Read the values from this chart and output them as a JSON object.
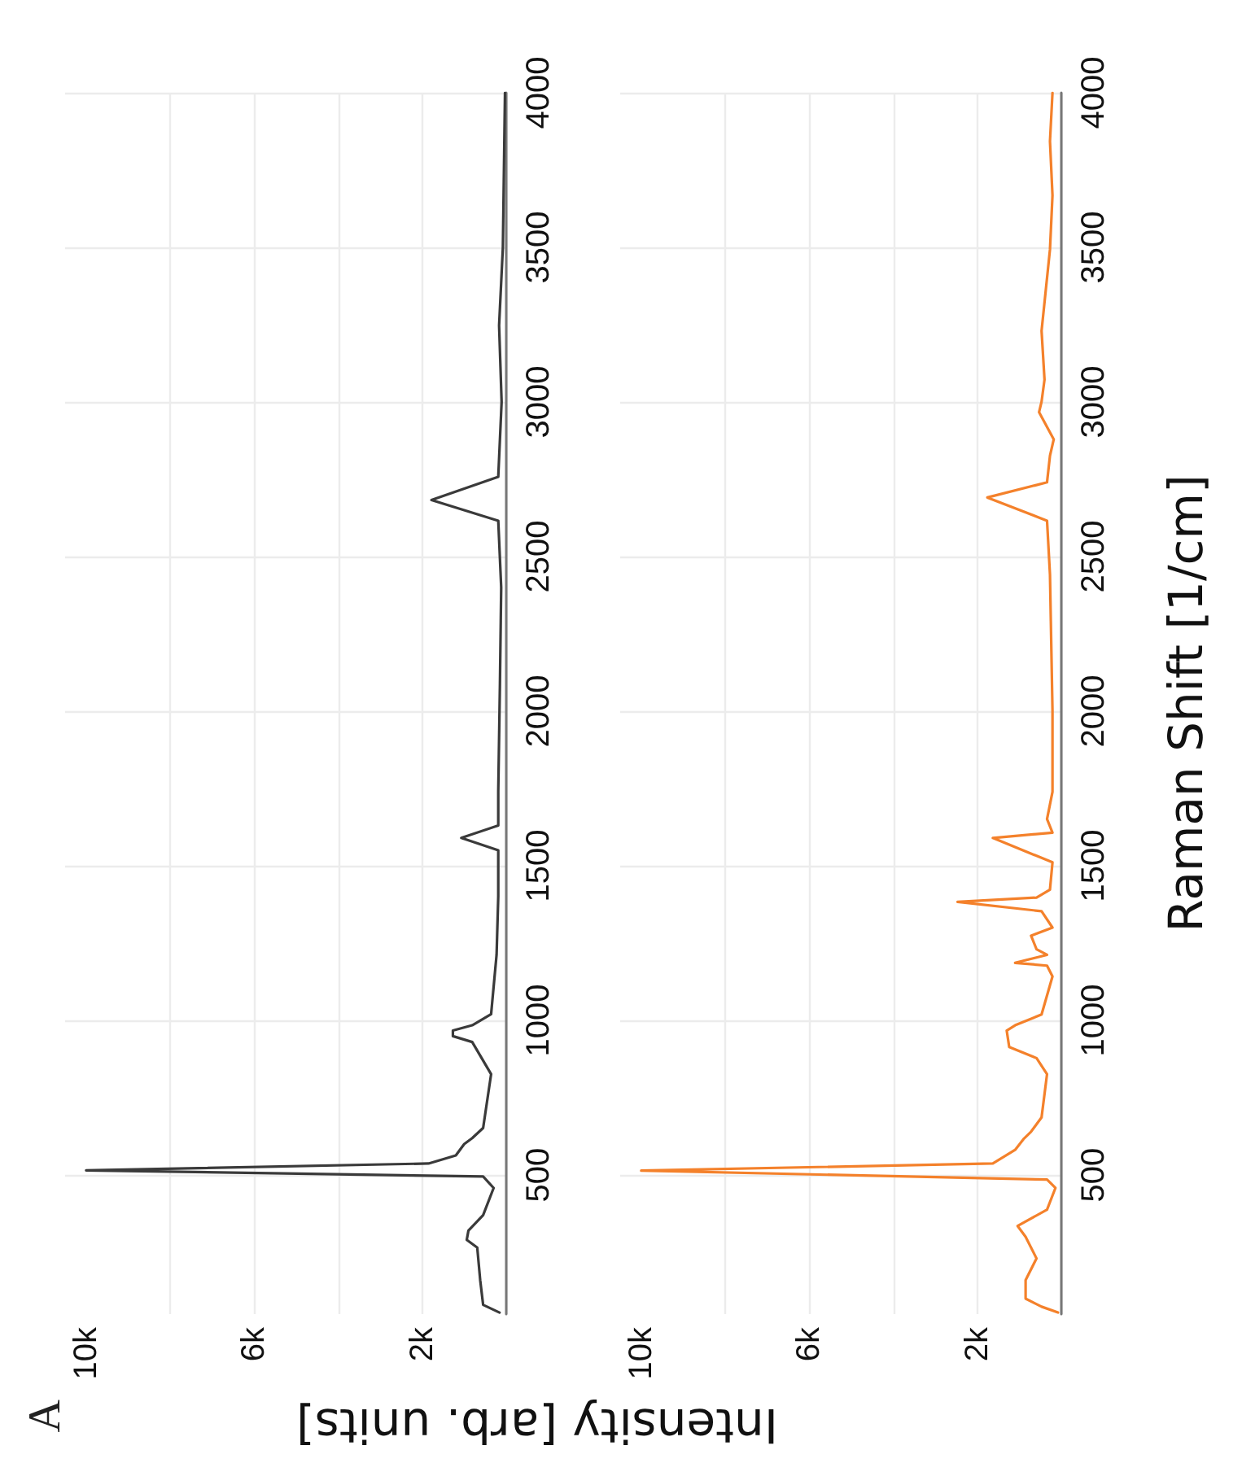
{
  "chart_data": [
    {
      "type": "line",
      "xlabel": "Intensity [arb. units]",
      "annotations": [
        "A"
      ],
      "color": "#3a3a3a",
      "grid": true,
      "marker": "none",
      "line_style": "solid",
      "values": [
        55,
        80,
        160,
        265,
        290,
        320,
        370,
        458,
        495,
        515,
        537,
        563,
        600,
        619,
        652,
        826,
        930,
        949,
        967,
        984,
        1020,
        1212,
        1400,
        1550,
        1590,
        1630,
        1738,
        2090,
        2400,
        2616,
        2683,
        2758,
        3000,
        3247,
        3500,
        4000
      ],
      "x": [
        160,
        550,
        620,
        690,
        940,
        900,
        550,
        300,
        550,
        10000,
        1850,
        1200,
        1000,
        810,
        550,
        360,
        810,
        1270,
        1270,
        810,
        360,
        230,
        190,
        190,
        1070,
        190,
        190,
        150,
        120,
        190,
        1780,
        190,
        110,
        170,
        80,
        30
      ],
      "ylim": [
        50,
        4000
      ],
      "yticks": [
        500,
        1000,
        1500,
        2000,
        2500,
        3000,
        3500,
        4000
      ],
      "xlim": [
        10500,
        0
      ],
      "xticks": [
        {
          "value": 0,
          "label": null
        },
        {
          "value": 2000,
          "label": "2k"
        },
        {
          "value": 4000,
          "label": null
        },
        {
          "value": 6000,
          "label": "6k"
        },
        {
          "value": 8000,
          "label": null
        },
        {
          "value": 10000,
          "label": "10k"
        }
      ]
    },
    {
      "type": "line",
      "ylabel": "Raman Shift [1/cm]",
      "color": "#f4812b",
      "grid": true,
      "marker": "none",
      "line_style": "solid",
      "values": [
        55,
        74,
        100,
        160,
        230,
        300,
        335,
        388,
        458,
        485,
        514,
        537,
        581,
        616,
        640,
        686,
        826,
        878,
        914,
        967,
        984,
        1019,
        1142,
        1177,
        1186,
        1212,
        1230,
        1274,
        1300,
        1353,
        1383,
        1397,
        1423,
        1511,
        1590,
        1607,
        1651,
        1739,
        1914,
        2001,
        2442,
        2616,
        2691,
        2740,
        2826,
        2879,
        2967,
        3001,
        3072,
        3230,
        3493,
        3668,
        3843,
        4000
      ],
      "x": [
        80,
        470,
        850,
        850,
        590,
        850,
        1040,
        340,
        140,
        340,
        10000,
        1630,
        1100,
        900,
        720,
        470,
        340,
        590,
        1240,
        1300,
        1100,
        470,
        210,
        340,
        1100,
        340,
        590,
        720,
        210,
        470,
        2470,
        590,
        270,
        210,
        1630,
        210,
        340,
        210,
        210,
        210,
        270,
        340,
        1760,
        340,
        270,
        180,
        530,
        470,
        400,
        470,
        270,
        210,
        270,
        210
      ],
      "ylim": [
        50,
        4000
      ],
      "yticks": [
        500,
        1000,
        1500,
        2000,
        2500,
        3000,
        3500,
        4000
      ],
      "xlim": [
        10500,
        0
      ],
      "xticks": [
        {
          "value": 0,
          "label": null
        },
        {
          "value": 2000,
          "label": "2k"
        },
        {
          "value": 4000,
          "label": null
        },
        {
          "value": 6000,
          "label": "6k"
        },
        {
          "value": 8000,
          "label": null
        },
        {
          "value": 10000,
          "label": "10k"
        }
      ]
    }
  ]
}
